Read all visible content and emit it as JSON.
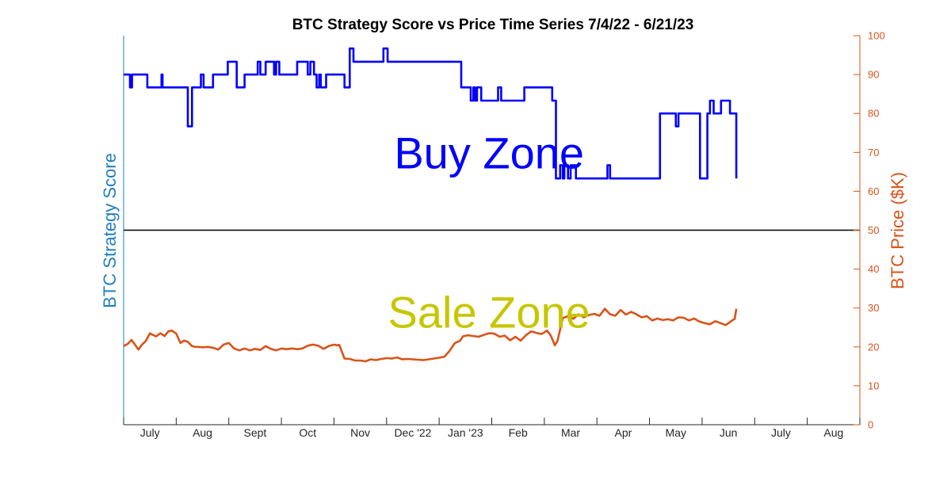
{
  "colors": {
    "score": "#0000ff",
    "price": "#d95319",
    "left_axis": "#1f7fc0",
    "right_axis": "#d95319",
    "threshold": "#000000",
    "buy_zone": "#0000ff",
    "sale_zone": "#c6c600"
  },
  "chart_data": {
    "type": "line",
    "title": "BTC Strategy Score vs Price Time Series 7/4/22 - 6/21/23",
    "ylabel_left": "BTC Strategy Score",
    "ylabel_right": "BTC Price ($K)",
    "ylim": [
      0,
      100
    ],
    "xlim": [
      0,
      14
    ],
    "right_ticks": [
      "0",
      "10",
      "20",
      "30",
      "40",
      "50",
      "60",
      "70",
      "80",
      "90",
      "100"
    ],
    "months": [
      "July",
      "Aug",
      "Sept",
      "Oct",
      "Nov",
      "Dec '22",
      "Jan '23",
      "Feb",
      "Mar",
      "Apr",
      "May",
      "Jun",
      "July",
      "Aug"
    ],
    "threshold": 50,
    "grid": false,
    "annotations": [
      {
        "text": "Buy Zone",
        "x": 6.95,
        "y": 70,
        "color_key": "buy_zone"
      },
      {
        "text": "Sale Zone",
        "x": 6.95,
        "y": 29,
        "color_key": "sale_zone"
      }
    ],
    "series": [
      {
        "key": "score",
        "axis": "left",
        "shape": "step",
        "x": [
          0,
          0.12,
          0.16,
          0.2,
          0.45,
          0.7,
          0.72,
          0.74,
          1.2,
          1.22,
          1.26,
          1.3,
          1.44,
          1.47,
          1.5,
          1.52,
          1.55,
          1.6,
          1.62,
          1.65,
          1.7,
          1.9,
          1.95,
          1.98,
          2.15,
          2.2,
          2.3,
          2.52,
          2.55,
          2.6,
          2.66,
          2.7,
          2.82,
          2.86,
          2.9,
          2.96,
          3.0,
          3.1,
          3.3,
          3.35,
          3.5,
          3.55,
          3.62,
          3.67,
          3.72,
          3.75,
          3.78,
          3.85,
          4.1,
          4.2,
          4.3,
          4.37,
          4.9,
          4.94,
          5.02,
          6.32,
          6.42,
          6.52,
          6.6,
          6.65,
          6.68,
          6.72,
          6.8,
          7.12,
          7.18,
          7.55,
          7.62,
          8.05,
          8.15,
          8.2,
          8.22,
          8.3,
          8.35,
          8.38,
          8.45,
          8.5,
          8.6,
          9.15,
          9.2,
          9.25,
          9.32,
          10.2,
          10.35,
          10.5,
          10.55,
          10.6,
          10.92,
          10.96,
          11.05,
          11.1,
          11.15,
          11.22,
          11.36,
          11.53,
          11.6,
          11.65
        ],
        "values": [
          90,
          86.7,
          90,
          90,
          86.7,
          86.7,
          90,
          86.7,
          86.7,
          76.7,
          76.7,
          86.7,
          86.7,
          90,
          90,
          86.7,
          86.7,
          86.7,
          86.7,
          86.7,
          90,
          90,
          90,
          93.3,
          86.7,
          86.7,
          90,
          90,
          93.3,
          90,
          90,
          93.3,
          93.3,
          90,
          93.3,
          90,
          90,
          90,
          93.3,
          93.3,
          90,
          93.3,
          90,
          86.7,
          90,
          86.7,
          86.7,
          90,
          90,
          86.7,
          96.7,
          93.3,
          93.3,
          96.7,
          93.3,
          93.3,
          86.7,
          86.7,
          83.3,
          86.7,
          83.3,
          86.7,
          83.3,
          86.7,
          83.3,
          83.3,
          86.7,
          86.7,
          83.3,
          83.3,
          63.3,
          66.7,
          63.3,
          66.7,
          63.3,
          66.7,
          63.3,
          63.3,
          66.7,
          63.3,
          63.3,
          80,
          80,
          76.7,
          80,
          80,
          80,
          63.3,
          63.3,
          80,
          83.3,
          80,
          83.3,
          80,
          80,
          63.3
        ]
      },
      {
        "key": "price",
        "axis": "right",
        "shape": "line",
        "x": [
          0,
          0.08,
          0.15,
          0.22,
          0.28,
          0.35,
          0.42,
          0.5,
          0.55,
          0.62,
          0.7,
          0.78,
          0.85,
          0.92,
          1.0,
          1.08,
          1.15,
          1.22,
          1.3,
          1.36,
          1.42,
          1.5,
          1.6,
          1.7,
          1.8,
          1.9,
          2.0,
          2.1,
          2.2,
          2.3,
          2.4,
          2.5,
          2.6,
          2.7,
          2.8,
          2.9,
          3.0,
          3.1,
          3.2,
          3.3,
          3.4,
          3.5,
          3.6,
          3.7,
          3.8,
          3.9,
          4.0,
          4.05,
          4.1,
          4.2,
          4.3,
          4.4,
          4.5,
          4.6,
          4.7,
          4.8,
          4.9,
          5.0,
          5.1,
          5.2,
          5.3,
          5.4,
          5.5,
          5.6,
          5.7,
          5.8,
          5.9,
          6.0,
          6.1,
          6.2,
          6.3,
          6.4,
          6.45,
          6.55,
          6.65,
          6.75,
          6.85,
          6.95,
          7.05,
          7.15,
          7.25,
          7.35,
          7.45,
          7.55,
          7.65,
          7.75,
          7.85,
          7.95,
          8.05,
          8.12,
          8.2,
          8.25,
          8.35,
          8.45,
          8.55,
          8.65,
          8.75,
          8.85,
          8.95,
          9.05,
          9.15,
          9.25,
          9.35,
          9.45,
          9.55,
          9.65,
          9.75,
          9.85,
          9.95,
          10.05,
          10.15,
          10.25,
          10.35,
          10.45,
          10.55,
          10.65,
          10.75,
          10.85,
          10.95,
          11.05,
          11.15,
          11.25,
          11.35,
          11.45,
          11.55,
          11.62,
          11.65
        ],
        "values": [
          20.2,
          20.8,
          21.8,
          20.5,
          19.3,
          20.6,
          21.5,
          23.5,
          23.1,
          22.7,
          23.5,
          22.8,
          24.0,
          24.2,
          23.4,
          21.0,
          21.6,
          21.3,
          20.2,
          20.0,
          20.0,
          19.9,
          20.0,
          19.8,
          19.3,
          20.6,
          21.0,
          19.6,
          19.1,
          19.6,
          19.1,
          19.5,
          19.2,
          20.2,
          19.5,
          19.1,
          19.6,
          19.4,
          19.6,
          19.4,
          19.6,
          20.3,
          20.6,
          20.3,
          19.5,
          20.2,
          20.6,
          20.4,
          20.5,
          17.0,
          16.9,
          16.5,
          16.5,
          16.3,
          16.8,
          16.6,
          16.9,
          17.1,
          17.0,
          17.3,
          16.8,
          16.9,
          16.8,
          16.7,
          16.6,
          16.8,
          17.0,
          17.2,
          17.5,
          19.0,
          21.0,
          21.6,
          22.7,
          23.0,
          22.8,
          22.6,
          23.1,
          23.5,
          23.4,
          22.6,
          22.9,
          21.7,
          22.6,
          21.6,
          23.0,
          24.0,
          23.6,
          23.3,
          24.2,
          23.0,
          20.4,
          21.5,
          27.4,
          27.9,
          27.2,
          28.4,
          27.6,
          28.2,
          28.5,
          28.0,
          29.8,
          28.4,
          28.0,
          29.5,
          28.3,
          29.0,
          28.4,
          27.6,
          27.9,
          26.8,
          27.3,
          26.9,
          27.1,
          26.8,
          27.6,
          27.5,
          26.8,
          27.3,
          26.5,
          26.1,
          25.8,
          26.6,
          26.1,
          25.6,
          26.6,
          27.2,
          29.8
        ]
      }
    ]
  }
}
